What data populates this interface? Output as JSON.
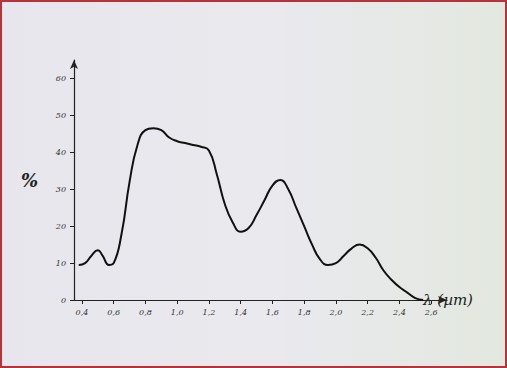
{
  "chart_data": {
    "type": "line",
    "ylabel": "%",
    "xlabel": "λ (µm)",
    "color": "#111111",
    "grid": false,
    "x": [
      0.38,
      0.42,
      0.46,
      0.5,
      0.53,
      0.57,
      0.6,
      0.65,
      0.7,
      0.75,
      0.8,
      0.85,
      0.9,
      0.95,
      1.0,
      1.05,
      1.1,
      1.15,
      1.2,
      1.25,
      1.3,
      1.35,
      1.4,
      1.45,
      1.5,
      1.55,
      1.6,
      1.65,
      1.7,
      1.75,
      1.8,
      1.85,
      1.9,
      1.95,
      2.0,
      2.05,
      2.1,
      2.15,
      2.2,
      2.25,
      2.3,
      2.35,
      2.4,
      2.45,
      2.5,
      2.55
    ],
    "values": [
      9.5,
      10,
      12,
      13.5,
      12,
      9.5,
      10,
      18,
      32,
      42,
      46,
      46.5,
      46,
      44,
      43,
      42.5,
      42,
      41.5,
      40.5,
      34,
      26,
      21,
      18.5,
      19.5,
      23,
      27,
      31,
      32.5,
      30,
      25,
      20,
      15,
      11,
      9.5,
      10,
      12,
      14,
      15,
      14,
      11.5,
      8,
      5.5,
      3.5,
      2,
      0.5,
      0
    ],
    "xlim": [
      0.35,
      2.7
    ],
    "xticks": [
      {
        "value": 0.4,
        "label": "0,4"
      },
      {
        "value": 0.6,
        "label": "0,6"
      },
      {
        "value": 0.8,
        "label": "0,8"
      },
      {
        "value": 1.0,
        "label": "1,0"
      },
      {
        "value": 1.2,
        "label": "1,2"
      },
      {
        "value": 1.4,
        "label": "1,4"
      },
      {
        "value": 1.6,
        "label": "1,6"
      },
      {
        "value": 1.8,
        "label": "1,8"
      },
      {
        "value": 2.0,
        "label": "2,0"
      },
      {
        "value": 2.2,
        "label": "2,2"
      },
      {
        "value": 2.4,
        "label": "2,4"
      },
      {
        "value": 2.6,
        "label": "2,6"
      }
    ],
    "ylim": [
      0,
      65
    ],
    "yticks": [
      0,
      10,
      20,
      30,
      40,
      50,
      60
    ]
  }
}
